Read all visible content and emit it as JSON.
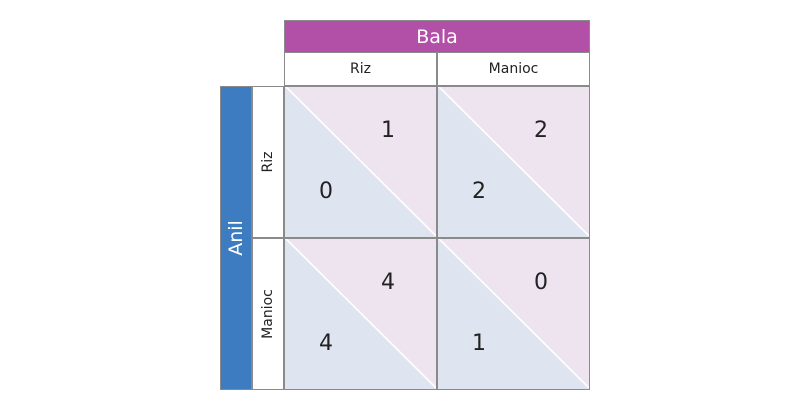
{
  "column_player": {
    "name": "Bala",
    "color": "#b24fa6",
    "strategies": [
      "Riz",
      "Manioc"
    ]
  },
  "row_player": {
    "name": "Anil",
    "color": "#3d7cc0",
    "strategies": [
      "Riz",
      "Manioc"
    ]
  },
  "payoffs": [
    [
      {
        "anil": "0",
        "bala": "1"
      },
      {
        "anil": "2",
        "bala": "2"
      }
    ],
    [
      {
        "anil": "4",
        "bala": "4"
      },
      {
        "anil": "1",
        "bala": "0"
      }
    ]
  ]
}
